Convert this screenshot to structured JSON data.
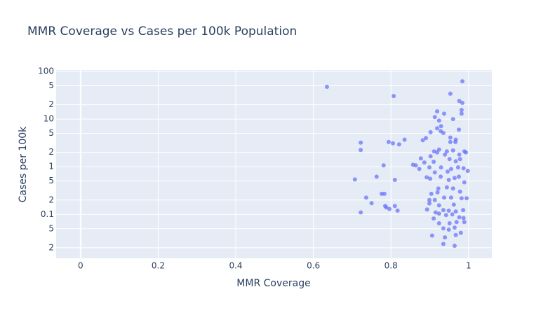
{
  "chart_data": {
    "type": "scatter",
    "title": "MMR Coverage vs Cases per 100k Population",
    "x_label": "MMR Coverage",
    "y_label": "Cases per 100k",
    "log_y": true,
    "grid": true,
    "color": "#636efa",
    "xlim": [
      -0.063,
      1.06
    ],
    "ylim": [
      0.012,
      107
    ],
    "xticks": [
      0,
      0.2,
      0.4,
      0.6,
      0.8,
      1
    ],
    "yticks": [
      {
        "value": 0.02,
        "label": "2"
      },
      {
        "value": 0.05,
        "label": "5"
      },
      0.1,
      {
        "value": 0.2,
        "label": "2"
      },
      {
        "value": 0.5,
        "label": "5"
      },
      1,
      {
        "value": 2,
        "label": "2"
      },
      {
        "value": 5,
        "label": "5"
      },
      10,
      {
        "value": 20,
        "label": "2"
      },
      {
        "value": 50,
        "label": "5"
      },
      100
    ],
    "x": [
      0.635,
      0.807,
      0.984,
      0.953,
      0.976,
      0.984,
      0.982,
      0.982,
      0.919,
      0.937,
      0.913,
      0.96,
      0.924,
      0.929,
      0.975,
      0.919,
      0.935,
      0.928,
      0.902,
      0.89,
      0.882,
      0.835,
      0.953,
      0.967,
      0.953,
      0.966,
      0.794,
      0.805,
      0.821,
      0.722,
      0.722,
      0.911,
      0.924,
      0.944,
      0.96,
      0.989,
      0.993,
      0.976,
      0.939,
      0.919,
      0.877,
      0.902,
      0.951,
      0.967,
      0.978,
      0.91,
      0.857,
      0.864,
      0.886,
      0.781,
      0.873,
      0.899,
      0.929,
      0.973,
      0.987,
      0.998,
      0.955,
      0.913,
      0.946,
      0.707,
      0.81,
      0.763,
      0.892,
      0.901,
      0.928,
      0.949,
      0.964,
      0.989,
      0.975,
      0.776,
      0.783,
      0.922,
      0.944,
      0.96,
      0.92,
      0.978,
      0.904,
      0.736,
      0.75,
      0.785,
      0.81,
      0.817,
      0.788,
      0.796,
      0.722,
      0.899,
      0.913,
      0.937,
      0.955,
      0.982,
      0.995,
      0.899,
      0.924,
      0.962,
      0.893,
      0.915,
      0.935,
      0.949,
      0.967,
      0.986,
      0.91,
      0.924,
      0.942,
      0.958,
      0.976,
      0.987,
      0.924,
      0.951,
      0.969,
      0.989,
      0.935,
      0.949,
      0.964,
      0.98,
      0.906,
      0.939,
      0.967,
      0.935,
      0.964
    ],
    "y": [
      47.5,
      30.5,
      62,
      34,
      24,
      21.8,
      15.5,
      13,
      14.5,
      13,
      11,
      10,
      9.3,
      7.1,
      6,
      6.4,
      5.1,
      5.6,
      5.3,
      4,
      3.6,
      3.7,
      4.1,
      3.7,
      3.3,
      3.3,
      3.3,
      3.1,
      2.95,
      3.2,
      2.25,
      2.1,
      2.3,
      2.1,
      2.2,
      2.1,
      2.0,
      1.8,
      1.8,
      2.0,
      1.5,
      1.66,
      1.45,
      1.3,
      1.45,
      1.27,
      1.1,
      1.07,
      1.23,
      1.07,
      0.9,
      0.97,
      0.97,
      0.97,
      0.93,
      0.82,
      0.9,
      0.76,
      0.79,
      0.54,
      0.53,
      0.62,
      0.6,
      0.56,
      0.62,
      0.53,
      0.58,
      0.47,
      0.62,
      0.27,
      0.27,
      0.35,
      0.37,
      0.35,
      0.29,
      0.3,
      0.27,
      0.225,
      0.172,
      0.15,
      0.15,
      0.12,
      0.14,
      0.13,
      0.11,
      0.2,
      0.2,
      0.225,
      0.225,
      0.218,
      0.218,
      0.17,
      0.155,
      0.16,
      0.127,
      0.11,
      0.123,
      0.12,
      0.115,
      0.123,
      0.082,
      0.104,
      0.097,
      0.1,
      0.087,
      0.084,
      0.065,
      0.065,
      0.069,
      0.069,
      0.051,
      0.048,
      0.053,
      0.041,
      0.036,
      0.033,
      0.037,
      0.024,
      0.022
    ]
  }
}
